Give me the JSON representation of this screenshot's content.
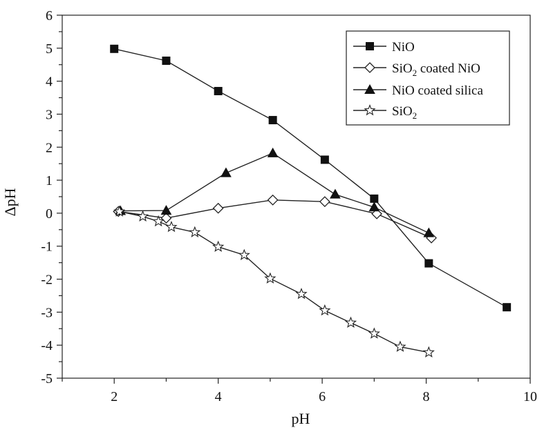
{
  "chart_data": {
    "type": "line",
    "title": "",
    "xlabel": "pH",
    "ylabel": "ΔpH",
    "xlim": [
      1,
      10
    ],
    "ylim": [
      -5,
      6
    ],
    "x_ticks": [
      2,
      4,
      6,
      8,
      10
    ],
    "y_ticks": [
      -5,
      -4,
      -3,
      -2,
      -1,
      0,
      1,
      2,
      3,
      4,
      5,
      6
    ],
    "grid": false,
    "legend_position": "top-right",
    "series": [
      {
        "name": "NiO",
        "label_main": "NiO",
        "label_sub": "",
        "label_rest": "",
        "marker": "square-filled",
        "points": [
          [
            2.0,
            4.98
          ],
          [
            3.0,
            4.62
          ],
          [
            4.0,
            3.7
          ],
          [
            5.05,
            2.82
          ],
          [
            6.05,
            1.62
          ],
          [
            7.0,
            0.44
          ],
          [
            8.05,
            -1.52
          ],
          [
            9.55,
            -2.85
          ]
        ]
      },
      {
        "name": "SiO2 coated NiO",
        "label_main": "SiO",
        "label_sub": "2",
        "label_rest": " coated NiO",
        "marker": "diamond-open",
        "points": [
          [
            2.08,
            0.05
          ],
          [
            3.0,
            -0.15
          ],
          [
            4.0,
            0.15
          ],
          [
            5.05,
            0.4
          ],
          [
            6.05,
            0.35
          ],
          [
            7.05,
            -0.02
          ],
          [
            8.1,
            -0.75
          ]
        ]
      },
      {
        "name": "NiO coated silica",
        "label_main": "NiO coated silica",
        "label_sub": "",
        "label_rest": "",
        "marker": "triangle-filled",
        "points": [
          [
            2.12,
            0.07
          ],
          [
            3.0,
            0.08
          ],
          [
            4.15,
            1.22
          ],
          [
            5.05,
            1.82
          ],
          [
            6.25,
            0.57
          ],
          [
            7.0,
            0.18
          ],
          [
            8.05,
            -0.6
          ]
        ]
      },
      {
        "name": "SiO2",
        "label_main": "SiO",
        "label_sub": "2",
        "label_rest": "",
        "marker": "star-open",
        "points": [
          [
            2.1,
            0.05
          ],
          [
            2.55,
            -0.1
          ],
          [
            2.85,
            -0.25
          ],
          [
            3.1,
            -0.42
          ],
          [
            3.55,
            -0.58
          ],
          [
            4.0,
            -1.02
          ],
          [
            4.5,
            -1.27
          ],
          [
            5.0,
            -1.98
          ],
          [
            5.6,
            -2.45
          ],
          [
            6.05,
            -2.95
          ],
          [
            6.55,
            -3.32
          ],
          [
            7.0,
            -3.65
          ],
          [
            7.5,
            -4.05
          ],
          [
            8.05,
            -4.22
          ]
        ]
      }
    ]
  }
}
